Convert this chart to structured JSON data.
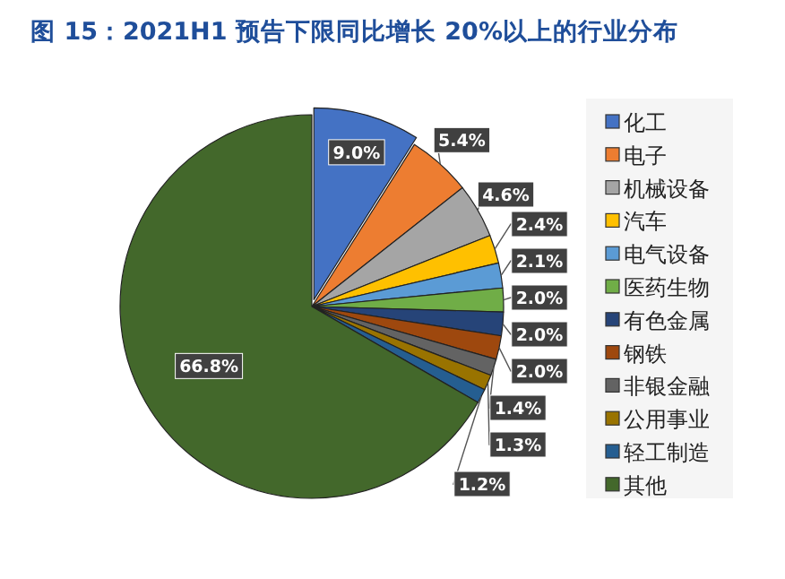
{
  "chart_data": {
    "type": "pie",
    "title": "图 15：2021H1 预告下限同比增长 20%以上的行业分布",
    "categories": [
      "化工",
      "电子",
      "机械设备",
      "汽车",
      "电气设备",
      "医药生物",
      "有色金属",
      "钢铁",
      "非银金融",
      "公用事业",
      "轻工制造",
      "其他"
    ],
    "values": [
      9.0,
      5.4,
      4.6,
      2.4,
      2.1,
      2.0,
      2.0,
      2.0,
      1.4,
      1.3,
      1.2,
      66.8
    ],
    "value_labels": [
      "9.0%",
      "5.4%",
      "4.6%",
      "2.4%",
      "2.1%",
      "2.0%",
      "2.0%",
      "2.0%",
      "1.4%",
      "1.3%",
      "1.2%",
      "66.8%"
    ],
    "colors": [
      "#4472c4",
      "#ed7d31",
      "#a5a5a5",
      "#ffc000",
      "#5b9bd5",
      "#70ad47",
      "#264478",
      "#9e480e",
      "#636363",
      "#997300",
      "#255e91",
      "#43682b"
    ],
    "legend": "right"
  }
}
